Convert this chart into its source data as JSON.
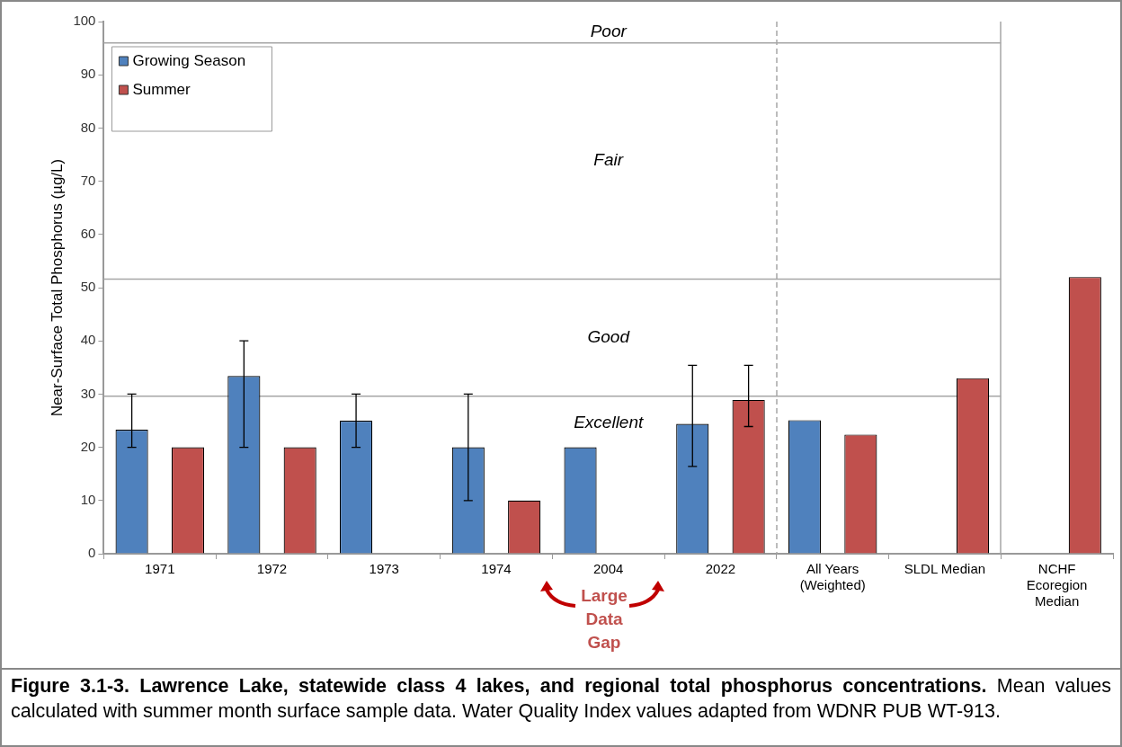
{
  "chart_data": {
    "type": "bar",
    "title": "Figure 3.1-3.  Lawrence Lake, statewide class 4 lakes, and regional total phosphorus concentrations.",
    "ylabel": "Near-Surface Total Phosphorus (µg/L)",
    "categories": [
      "1971",
      "1972",
      "1973",
      "1974",
      "2004",
      "2022",
      "All Years\n(Weighted)",
      "SLDL Median",
      "NCHF\nEcoregion\nMedian"
    ],
    "series": [
      {
        "name": "Growing Season",
        "color": "#4f81bd",
        "values": [
          23.3,
          33.4,
          25,
          20,
          20,
          24.4,
          25.1,
          null,
          null
        ],
        "errors": [
          [
            20,
            30
          ],
          [
            20,
            40
          ],
          [
            20,
            30
          ],
          [
            10,
            30
          ],
          null,
          [
            16.4,
            35.4
          ],
          null,
          null,
          null
        ]
      },
      {
        "name": "Summer",
        "color": "#c0504d",
        "values": [
          20,
          20,
          null,
          10,
          null,
          28.9,
          22.4,
          33,
          52
        ],
        "errors": [
          null,
          null,
          null,
          null,
          null,
          [
            23.9,
            35.4
          ],
          null,
          null,
          null
        ]
      }
    ],
    "ylim": [
      0,
      100
    ],
    "yticks": [
      0,
      10,
      20,
      30,
      40,
      50,
      60,
      70,
      80,
      90,
      100
    ],
    "grid": false,
    "legend": "top left",
    "ref_lines": [
      {
        "axis": "y",
        "value": 96,
        "color": "#a6a6a6",
        "line_style": "solid"
      },
      {
        "axis": "y",
        "value": 51.6,
        "color": "#a6a6a6",
        "line_style": "solid"
      },
      {
        "axis": "y",
        "value": 29.6,
        "color": "#a6a6a6",
        "line_style": "solid"
      }
    ],
    "annotations": [
      "Poor",
      "Fair",
      "Good",
      "Excellent",
      "Large\nData\nGap",
      "Mean values calculated with summer month surface sample data.  Water Quality Index values adapted from WDNR PUB WT-913."
    ]
  }
}
